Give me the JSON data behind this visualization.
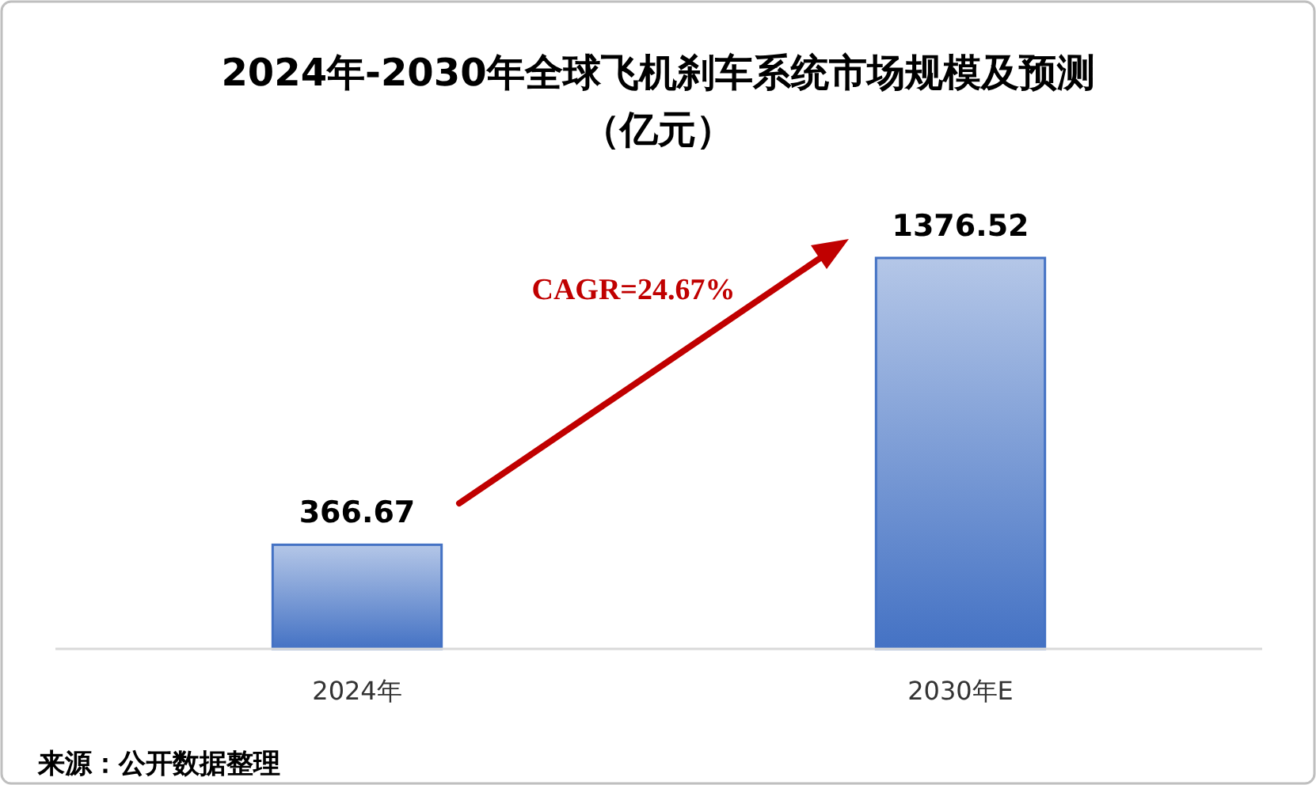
{
  "chart_data": {
    "type": "bar",
    "title": "2024年-2030年全球飞机刹车系统市场规模及预测（亿元）",
    "categories": [
      "2024年",
      "2030年E"
    ],
    "values": [
      366.67,
      1376.52
    ],
    "color": "#4472c4",
    "data_labels": true,
    "annotations": [
      "CAGR=24.67%",
      "来源：公开数据整理"
    ]
  }
}
